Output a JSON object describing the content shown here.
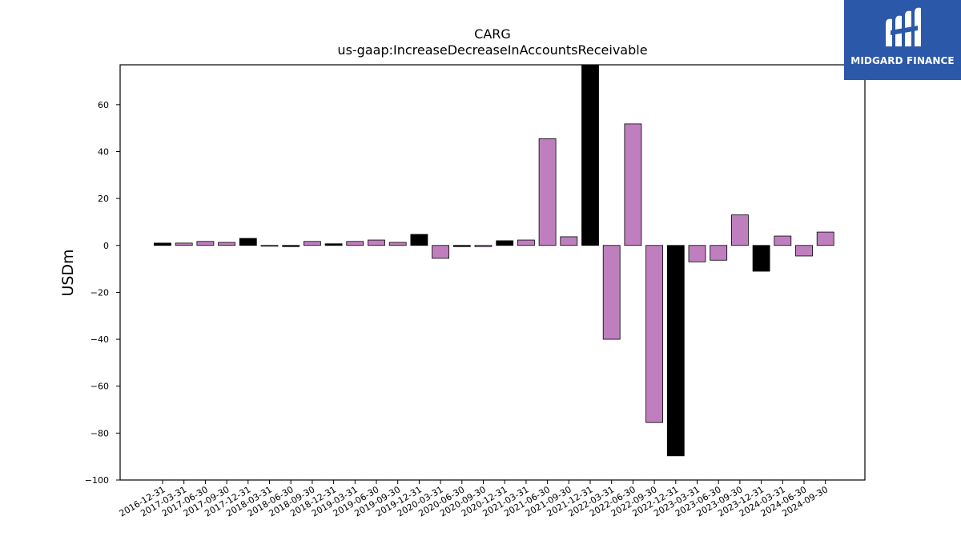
{
  "chart_data": {
    "type": "bar",
    "title": "CARG",
    "subtitle": "us-gaap:IncreaseDecreaseInAccountsReceivable",
    "ylabel": "USDm",
    "xlabel": "",
    "ylim": [
      -100,
      77
    ],
    "yticks": [
      -100,
      -80,
      -60,
      -40,
      -20,
      0,
      20,
      40,
      60
    ],
    "grid": false,
    "categories": [
      "2016-12-31",
      "2017-03-31",
      "2017-06-30",
      "2017-09-30",
      "2017-12-31",
      "2018-03-31",
      "2018-06-30",
      "2018-09-30",
      "2018-12-31",
      "2019-03-31",
      "2019-06-30",
      "2019-09-30",
      "2019-12-31",
      "2020-03-31",
      "2020-06-30",
      "2020-09-30",
      "2020-12-31",
      "2021-03-31",
      "2021-06-30",
      "2021-09-30",
      "2021-12-31",
      "2022-03-31",
      "2022-06-30",
      "2022-09-30",
      "2022-12-31",
      "2023-03-31",
      "2023-06-30",
      "2023-09-30",
      "2023-12-31",
      "2024-03-31",
      "2024-06-30",
      "2024-09-30"
    ],
    "values": [
      1.0,
      1.0,
      1.7,
      1.3,
      3.0,
      -0.3,
      -0.5,
      1.7,
      0.7,
      1.7,
      2.3,
      1.3,
      4.7,
      -5.5,
      -0.5,
      -0.5,
      2.0,
      2.3,
      45.5,
      3.7,
      77.5,
      -40.0,
      51.8,
      -75.5,
      -89.7,
      -7.0,
      -6.3,
      13.0,
      -11.0,
      4.0,
      -4.5,
      5.7
    ],
    "bar_colors": [
      "#000000",
      "#bf7fbf",
      "#bf7fbf",
      "#bf7fbf",
      "#000000",
      "#bf7fbf",
      "#000000",
      "#bf7fbf",
      "#000000",
      "#bf7fbf",
      "#bf7fbf",
      "#bf7fbf",
      "#000000",
      "#bf7fbf",
      "#000000",
      "#bf7fbf",
      "#000000",
      "#bf7fbf",
      "#bf7fbf",
      "#bf7fbf",
      "#000000",
      "#bf7fbf",
      "#bf7fbf",
      "#bf7fbf",
      "#000000",
      "#bf7fbf",
      "#bf7fbf",
      "#bf7fbf",
      "#000000",
      "#bf7fbf",
      "#bf7fbf",
      "#bf7fbf"
    ]
  },
  "logo": {
    "text": "MIDGARD FINANCE",
    "background": "#2b58a8"
  }
}
